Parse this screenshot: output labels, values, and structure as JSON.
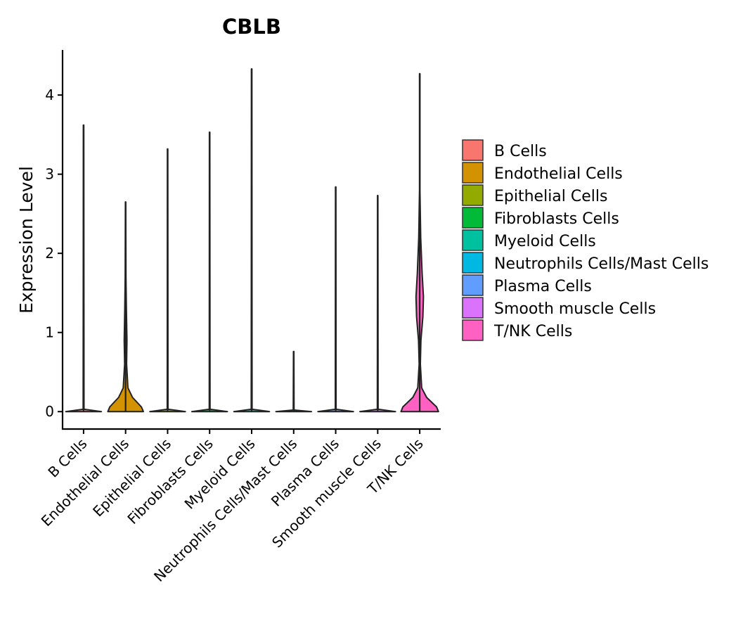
{
  "chart_data": {
    "type": "violin",
    "title": "CBLB",
    "xlabel": "",
    "ylabel": "Expression Level",
    "ylim": [
      -0.22,
      4.57
    ],
    "yticks": [
      0,
      1,
      2,
      3,
      4
    ],
    "legend_position": "right",
    "categories": [
      "B Cells",
      "Endothelial Cells",
      "Epithelial Cells",
      "Fibroblasts Cells",
      "Myeloid Cells",
      "Neutrophils Cells/Mast Cells",
      "Plasma Cells",
      "Smooth muscle Cells",
      "T/NK Cells"
    ],
    "colors": [
      "#F8766D",
      "#D39200",
      "#93AA00",
      "#00BA38",
      "#00C19F",
      "#00B9E3",
      "#619CFF",
      "#DB72FB",
      "#FF61C3"
    ],
    "max_values": [
      3.62,
      2.65,
      3.32,
      3.53,
      4.33,
      0.76,
      2.84,
      2.73,
      4.27
    ],
    "profiles": [
      [
        [
          0,
          0.9
        ],
        [
          0.03,
          0.02
        ],
        [
          3.62,
          0.01
        ]
      ],
      [
        [
          0,
          0.9
        ],
        [
          0.06,
          0.8
        ],
        [
          0.18,
          0.35
        ],
        [
          0.3,
          0.12
        ],
        [
          0.6,
          0.05
        ],
        [
          0.9,
          0.07
        ],
        [
          1.3,
          0.04
        ],
        [
          1.7,
          0.02
        ],
        [
          2.65,
          0.01
        ]
      ],
      [
        [
          0,
          0.9
        ],
        [
          0.03,
          0.02
        ],
        [
          3.32,
          0.01
        ]
      ],
      [
        [
          0,
          0.9
        ],
        [
          0.03,
          0.02
        ],
        [
          3.53,
          0.01
        ]
      ],
      [
        [
          0,
          0.9
        ],
        [
          0.03,
          0.02
        ],
        [
          4.33,
          0.01
        ]
      ],
      [
        [
          0,
          0.9
        ],
        [
          0.02,
          0.02
        ],
        [
          0.76,
          0.01
        ]
      ],
      [
        [
          0,
          0.9
        ],
        [
          0.03,
          0.02
        ],
        [
          2.84,
          0.01
        ]
      ],
      [
        [
          0,
          0.9
        ],
        [
          0.03,
          0.02
        ],
        [
          2.73,
          0.01
        ]
      ],
      [
        [
          0,
          0.95
        ],
        [
          0.06,
          0.85
        ],
        [
          0.18,
          0.35
        ],
        [
          0.3,
          0.1
        ],
        [
          0.6,
          0.03
        ],
        [
          0.9,
          0.06
        ],
        [
          1.2,
          0.16
        ],
        [
          1.45,
          0.19
        ],
        [
          1.75,
          0.12
        ],
        [
          2.2,
          0.05
        ],
        [
          2.8,
          0.01
        ],
        [
          4.27,
          0.01
        ]
      ]
    ]
  }
}
